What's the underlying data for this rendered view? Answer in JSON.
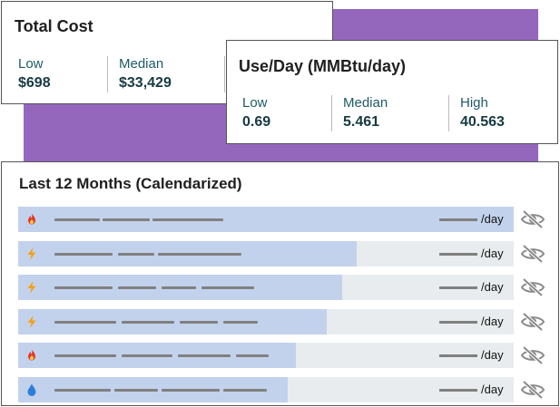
{
  "total_cost": {
    "title": "Total Cost",
    "stats": [
      {
        "label": "Low",
        "value": "$698"
      },
      {
        "label": "Median",
        "value": "$33,429"
      }
    ]
  },
  "use_per_day": {
    "title": "Use/Day (MMBtu/day)",
    "stats": [
      {
        "label": "Low",
        "value": "0.69"
      },
      {
        "label": "Median",
        "value": "5.461"
      },
      {
        "label": "High",
        "value": "40.563"
      }
    ]
  },
  "last12": {
    "title": "Last 12 Months (Calendarized)",
    "unit": "/day",
    "rows": [
      {
        "icon": "flame-icon",
        "fill": 1.0
      },
      {
        "icon": "lightning-icon",
        "fill": 0.683
      },
      {
        "icon": "lightning-icon",
        "fill": 0.654
      },
      {
        "icon": "lightning-icon",
        "fill": 0.623
      },
      {
        "icon": "flame-icon",
        "fill": 0.56
      },
      {
        "icon": "water-drop-icon",
        "fill": 0.544
      }
    ]
  },
  "colors": {
    "accent_purple": "#9467bd",
    "row_fill": "#c3d2ec",
    "row_track": "#e8ecee",
    "value_text": "#163a42",
    "flame": "#e8352b",
    "lightning": "#f2a21e",
    "water": "#2b7fd9"
  }
}
